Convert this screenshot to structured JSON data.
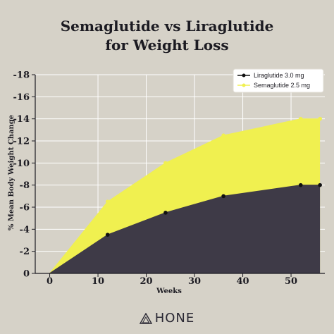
{
  "title_line1": "Semaglutide vs Liraglutide",
  "title_line2": "for Weight Loss",
  "brand": "HONE",
  "colors": {
    "background": "#d6d2c8",
    "liraglutide": "#3e3a47",
    "semaglutide": "#f0f050",
    "grid": "#ffffff",
    "axis": "#1c1b22"
  },
  "chart_data": {
    "type": "area",
    "title": "Semaglutide vs Liraglutide for Weight Loss",
    "xlabel": "Weeks",
    "ylabel": "% Mean Body Weight Change",
    "xlim": [
      0,
      56
    ],
    "ylim": [
      0,
      -18
    ],
    "y_axis_inverted": true,
    "x_ticks": [
      "0",
      "10",
      "20",
      "30",
      "40",
      "50"
    ],
    "y_ticks": [
      "0",
      "-2",
      "-4",
      "-6",
      "-8",
      "-10",
      "-12",
      "-14",
      "-16",
      "-18"
    ],
    "grid": true,
    "legend_position": "top-right",
    "series": [
      {
        "name": "Liraglutide 3.0 mg",
        "color": "#3e3a47",
        "marker_color": "#111111",
        "x": [
          0,
          12,
          24,
          36,
          52,
          56
        ],
        "values": [
          0,
          -3.5,
          -5.5,
          -7,
          -8,
          -8
        ]
      },
      {
        "name": "Semaglutide 2.5 mg",
        "color": "#f0f050",
        "marker_color": "#f0f050",
        "x": [
          0,
          12,
          24,
          36,
          52,
          56
        ],
        "values": [
          0,
          -6.5,
          -10,
          -12.5,
          -14,
          -14
        ]
      }
    ]
  }
}
